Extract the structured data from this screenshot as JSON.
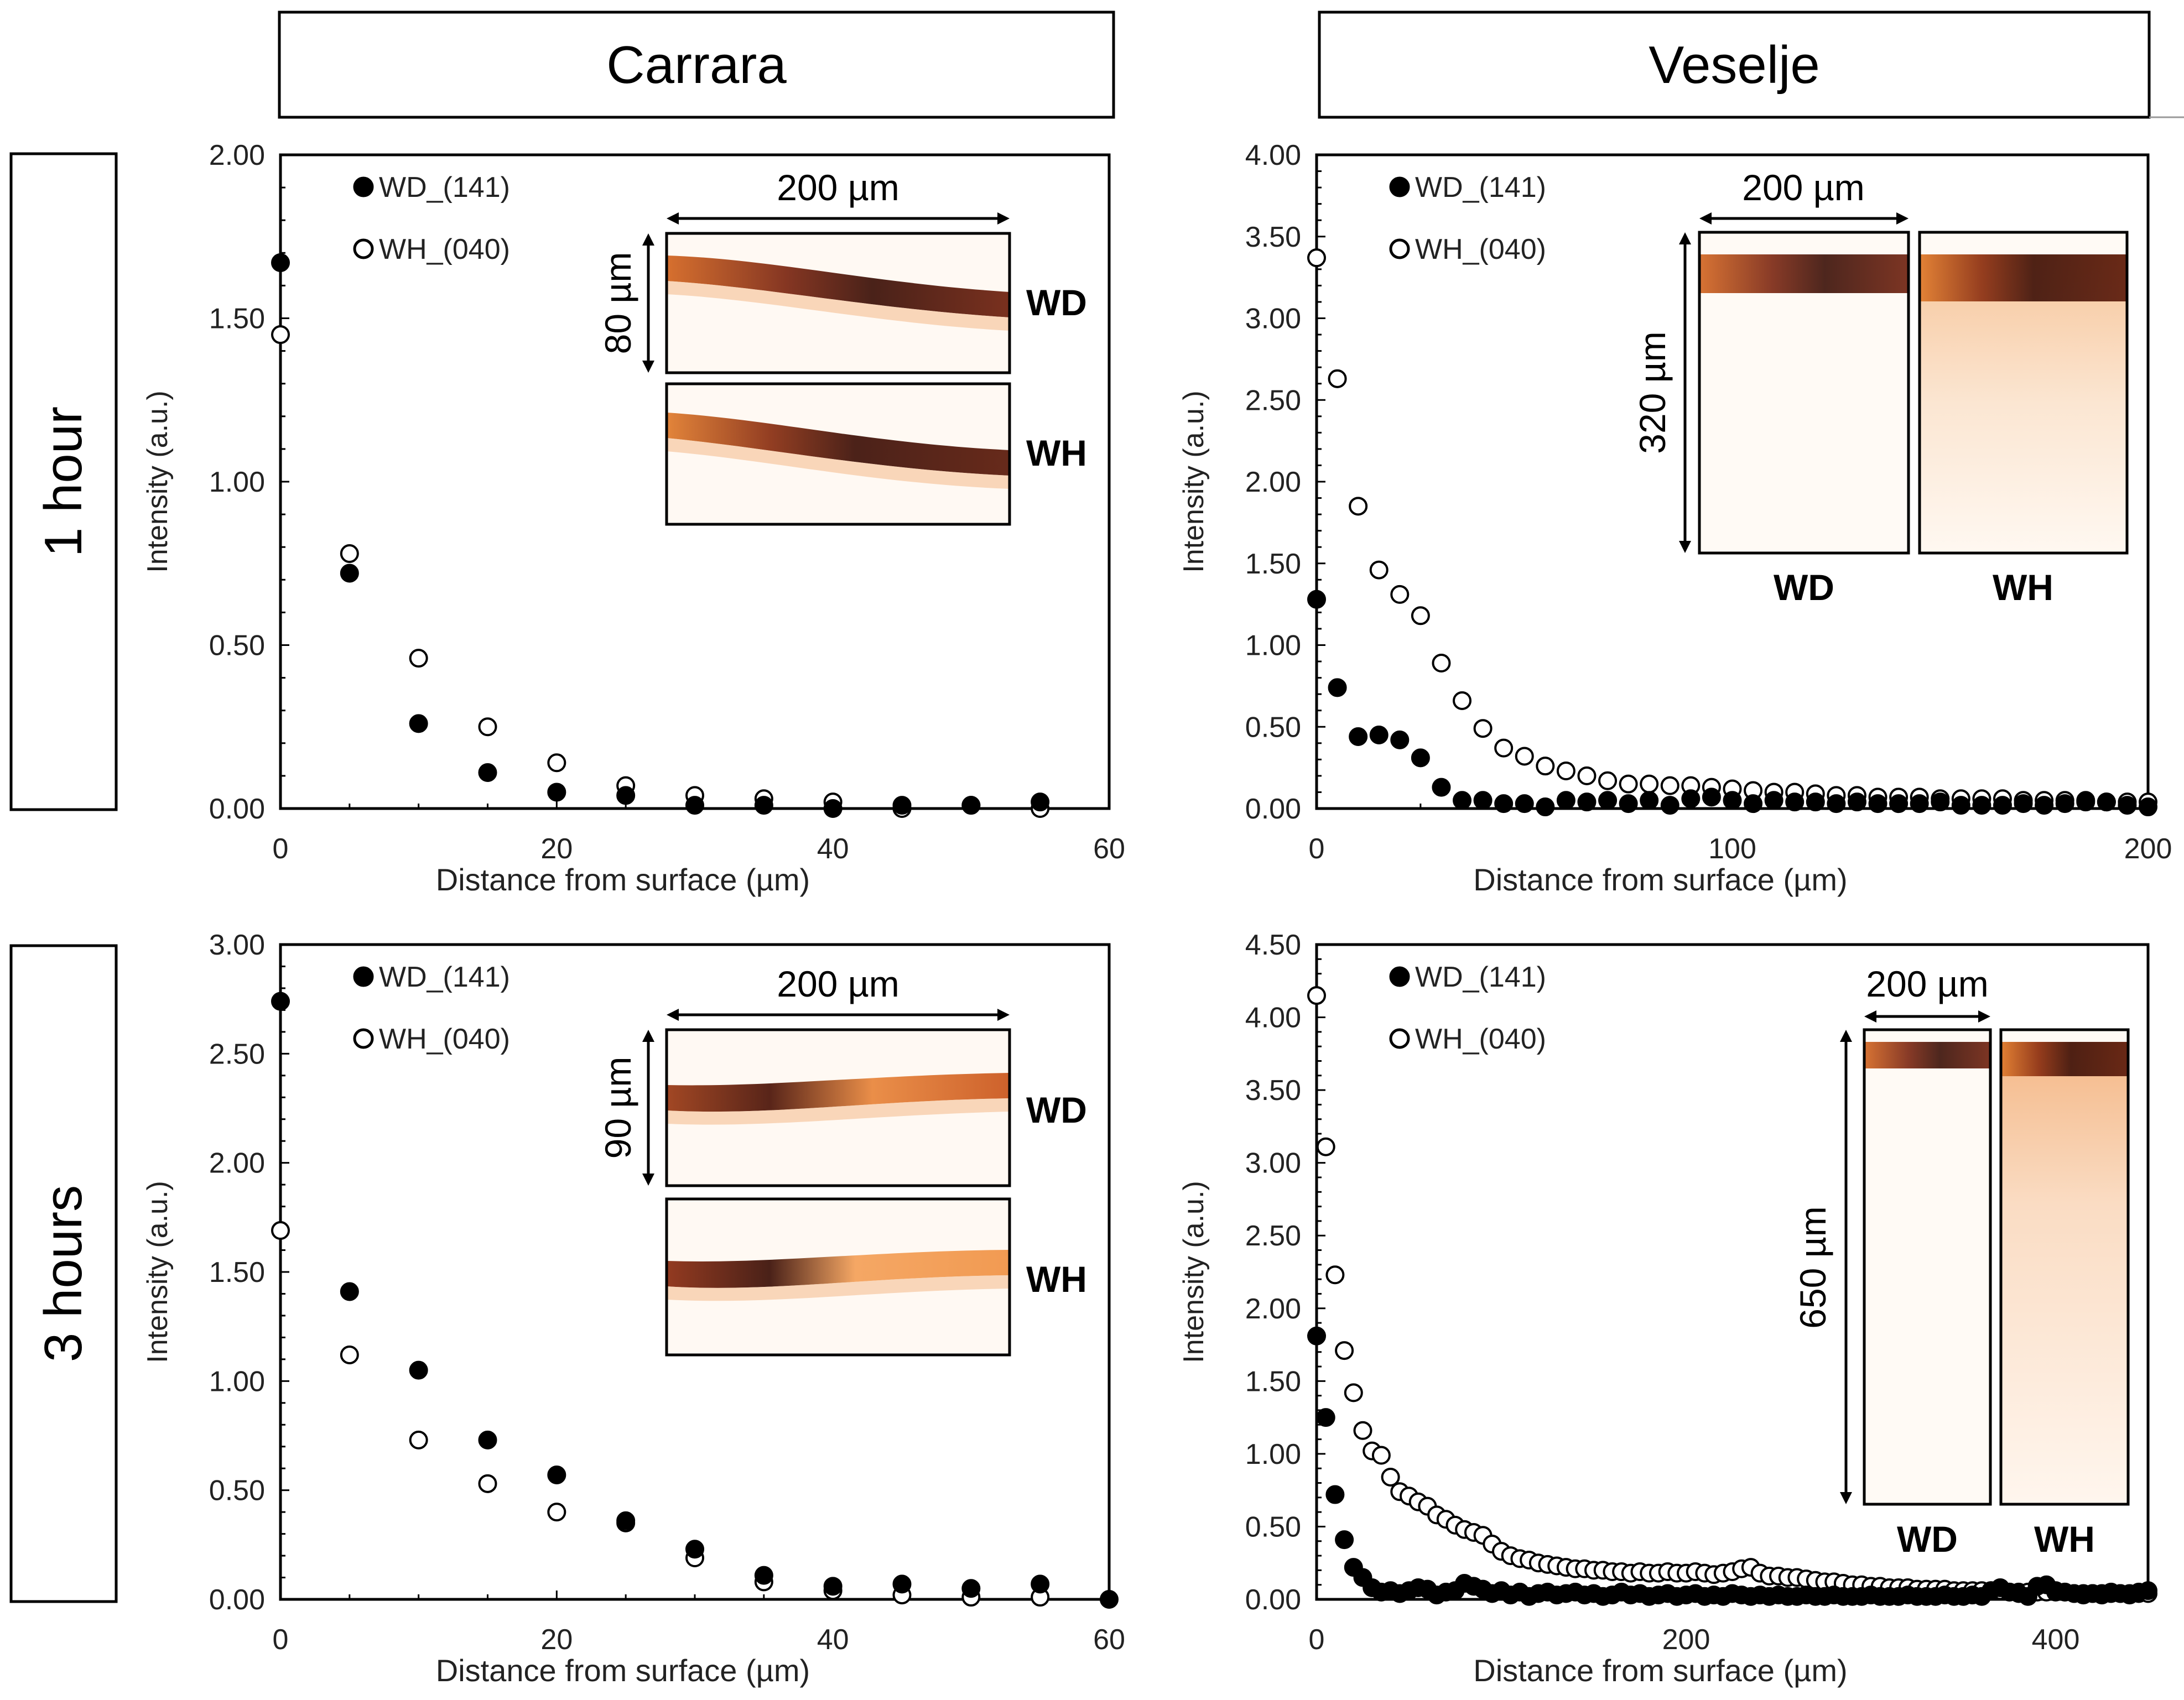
{
  "columns": [
    "Carrara",
    "Veselje"
  ],
  "rows": [
    "1 hour",
    "3 hours"
  ],
  "chart_data": [
    {
      "id": "carrara-1h",
      "type": "scatter",
      "xlabel": "Distance from surface (µm)",
      "ylabel": "Intensity (a.u.)",
      "xlim": [
        0,
        60
      ],
      "ylim": [
        0,
        2.0
      ],
      "xticks": [
        0,
        20,
        40,
        60
      ],
      "yticks": [
        0,
        0.5,
        1.0,
        1.5,
        2.0
      ],
      "xticklabels": [
        "0",
        "20",
        "40",
        "60"
      ],
      "yticklabels": [
        "0.00",
        "0.50",
        "1.00",
        "1.50",
        "2.00"
      ],
      "legend": [
        "WD_(141)",
        "WH_(040)"
      ],
      "series": [
        {
          "name": "WD_(141)",
          "marker": "filled",
          "x": [
            0,
            5,
            10,
            15,
            20,
            25,
            30,
            35,
            40,
            45,
            50,
            55
          ],
          "y": [
            1.67,
            0.72,
            0.26,
            0.11,
            0.05,
            0.04,
            0.01,
            0.01,
            0.0,
            0.01,
            0.01,
            0.02
          ]
        },
        {
          "name": "WH_(040)",
          "marker": "open",
          "x": [
            0,
            5,
            10,
            15,
            20,
            25,
            30,
            35,
            40,
            45,
            50,
            55
          ],
          "y": [
            1.45,
            0.78,
            0.46,
            0.25,
            0.14,
            0.07,
            0.04,
            0.03,
            0.02,
            0.0,
            0.01,
            0.0
          ]
        }
      ],
      "inset": {
        "scale_h": "200 µm",
        "scale_v": "80 µm",
        "labels": [
          "WD",
          "WH"
        ]
      }
    },
    {
      "id": "veselje-1h",
      "type": "scatter",
      "xlabel": "Distance from surface (µm)",
      "ylabel": "Intensity (a.u.)",
      "xlim": [
        0,
        200
      ],
      "ylim": [
        0,
        4.0
      ],
      "xticks": [
        0,
        100,
        200
      ],
      "yticks": [
        0,
        0.5,
        1.0,
        1.5,
        2.0,
        2.5,
        3.0,
        3.5,
        4.0
      ],
      "xticklabels": [
        "0",
        "100",
        "200"
      ],
      "yticklabels": [
        "0.00",
        "0.50",
        "1.00",
        "1.50",
        "2.00",
        "2.50",
        "3.00",
        "3.50",
        "4.00"
      ],
      "legend": [
        "WD_(141)",
        "WH_(040)"
      ],
      "series": [
        {
          "name": "WD_(141)",
          "marker": "filled",
          "x": [
            0,
            5,
            10,
            15,
            20,
            25,
            30,
            35,
            40,
            45,
            50,
            55,
            60,
            65,
            70,
            75,
            80,
            85,
            90,
            95,
            100,
            105,
            110,
            115,
            120,
            125,
            130,
            135,
            140,
            145,
            150,
            155,
            160,
            165,
            170,
            175,
            180,
            185,
            190,
            195,
            200
          ],
          "y": [
            1.28,
            0.74,
            0.44,
            0.45,
            0.42,
            0.31,
            0.13,
            0.05,
            0.05,
            0.03,
            0.03,
            0.01,
            0.05,
            0.04,
            0.05,
            0.03,
            0.05,
            0.02,
            0.06,
            0.07,
            0.05,
            0.03,
            0.05,
            0.04,
            0.04,
            0.03,
            0.04,
            0.03,
            0.03,
            0.03,
            0.04,
            0.02,
            0.02,
            0.02,
            0.03,
            0.02,
            0.03,
            0.04,
            0.04,
            0.02,
            0.01
          ]
        },
        {
          "name": "WH_(040)",
          "marker": "open",
          "x": [
            0,
            5,
            10,
            15,
            20,
            25,
            30,
            35,
            40,
            45,
            50,
            55,
            60,
            65,
            70,
            75,
            80,
            85,
            90,
            95,
            100,
            105,
            110,
            115,
            120,
            125,
            130,
            135,
            140,
            145,
            150,
            155,
            160,
            165,
            170,
            175,
            180,
            185,
            190,
            195,
            200
          ],
          "y": [
            3.37,
            2.63,
            1.85,
            1.46,
            1.31,
            1.18,
            0.89,
            0.66,
            0.49,
            0.37,
            0.32,
            0.26,
            0.23,
            0.2,
            0.17,
            0.15,
            0.15,
            0.14,
            0.14,
            0.13,
            0.12,
            0.11,
            0.1,
            0.1,
            0.09,
            0.08,
            0.08,
            0.07,
            0.07,
            0.07,
            0.06,
            0.06,
            0.06,
            0.06,
            0.05,
            0.05,
            0.05,
            0.05,
            0.04,
            0.04,
            0.04
          ]
        }
      ],
      "inset": {
        "scale_h": "200 µm",
        "scale_v": "320 µm",
        "labels": [
          "WD",
          "WH"
        ]
      }
    },
    {
      "id": "carrara-3h",
      "type": "scatter",
      "xlabel": "Distance from surface (µm)",
      "ylabel": "Intensity (a.u.)",
      "xlim": [
        0,
        60
      ],
      "ylim": [
        0,
        3.0
      ],
      "xticks": [
        0,
        20,
        40,
        60
      ],
      "yticks": [
        0,
        0.5,
        1.0,
        1.5,
        2.0,
        2.5,
        3.0
      ],
      "xticklabels": [
        "0",
        "20",
        "40",
        "60"
      ],
      "yticklabels": [
        "0.00",
        "0.50",
        "1.00",
        "1.50",
        "2.00",
        "2.50",
        "3.00"
      ],
      "legend": [
        "WD_(141)",
        "WH_(040)"
      ],
      "series": [
        {
          "name": "WD_(141)",
          "marker": "filled",
          "x": [
            0,
            5,
            10,
            15,
            20,
            25,
            30,
            35,
            40,
            45,
            50,
            55,
            60
          ],
          "y": [
            2.74,
            1.41,
            1.05,
            0.73,
            0.57,
            0.36,
            0.23,
            0.11,
            0.06,
            0.07,
            0.05,
            0.07,
            0.0
          ]
        },
        {
          "name": "WH_(040)",
          "marker": "open",
          "x": [
            0,
            5,
            10,
            15,
            20,
            25,
            30,
            35,
            40,
            45,
            50,
            55
          ],
          "y": [
            1.69,
            1.12,
            0.73,
            0.53,
            0.4,
            0.35,
            0.19,
            0.08,
            0.04,
            0.02,
            0.01,
            0.01
          ]
        }
      ],
      "inset": {
        "scale_h": "200 µm",
        "scale_v": "90 µm",
        "labels": [
          "WD",
          "WH"
        ]
      }
    },
    {
      "id": "veselje-3h",
      "type": "scatter",
      "xlabel": "Distance from surface (µm)",
      "ylabel": "Intensity (a.u.)",
      "xlim": [
        0,
        450
      ],
      "ylim": [
        0,
        4.5
      ],
      "xticks": [
        0,
        200,
        400
      ],
      "yticks": [
        0,
        0.5,
        1.0,
        1.5,
        2.0,
        2.5,
        3.0,
        3.5,
        4.0,
        4.5
      ],
      "xticklabels": [
        "0",
        "200",
        "400"
      ],
      "yticklabels": [
        "0.00",
        "0.50",
        "1.00",
        "1.50",
        "2.00",
        "2.50",
        "3.00",
        "3.50",
        "4.00",
        "4.50"
      ],
      "legend": [
        "WD_(141)",
        "WH_(040)"
      ],
      "series": [
        {
          "name": "WD_(141)",
          "marker": "filled",
          "x": [
            0,
            5,
            10,
            15,
            20,
            25,
            30,
            35,
            40,
            45,
            50,
            55,
            60,
            65,
            70,
            75,
            80,
            85,
            90,
            95,
            100,
            105,
            110,
            115,
            120,
            125,
            130,
            135,
            140,
            145,
            150,
            155,
            160,
            165,
            170,
            175,
            180,
            185,
            190,
            195,
            200,
            205,
            210,
            215,
            220,
            225,
            230,
            235,
            240,
            245,
            250,
            255,
            260,
            265,
            270,
            275,
            280,
            285,
            290,
            295,
            300,
            305,
            310,
            315,
            320,
            325,
            330,
            335,
            340,
            345,
            350,
            355,
            360,
            365,
            370,
            375,
            380,
            385,
            390,
            395,
            400,
            405,
            410,
            415,
            420,
            425,
            430,
            435,
            440,
            445,
            450
          ],
          "y": [
            1.81,
            1.25,
            0.72,
            0.41,
            0.22,
            0.15,
            0.08,
            0.05,
            0.06,
            0.04,
            0.06,
            0.08,
            0.07,
            0.03,
            0.05,
            0.06,
            0.11,
            0.09,
            0.07,
            0.04,
            0.06,
            0.03,
            0.05,
            0.02,
            0.04,
            0.05,
            0.03,
            0.04,
            0.05,
            0.03,
            0.04,
            0.02,
            0.03,
            0.05,
            0.03,
            0.04,
            0.02,
            0.03,
            0.04,
            0.02,
            0.03,
            0.04,
            0.02,
            0.03,
            0.02,
            0.04,
            0.03,
            0.02,
            0.03,
            0.02,
            0.03,
            0.02,
            0.02,
            0.03,
            0.02,
            0.02,
            0.03,
            0.02,
            0.02,
            0.02,
            0.03,
            0.02,
            0.02,
            0.02,
            0.03,
            0.02,
            0.02,
            0.02,
            0.03,
            0.02,
            0.02,
            0.03,
            0.02,
            0.06,
            0.08,
            0.05,
            0.04,
            0.02,
            0.09,
            0.1,
            0.06,
            0.05,
            0.04,
            0.03,
            0.04,
            0.03,
            0.05,
            0.04,
            0.03,
            0.05,
            0.06
          ]
        },
        {
          "name": "WH_(040)",
          "marker": "open",
          "x": [
            0,
            5,
            10,
            15,
            20,
            25,
            30,
            35,
            40,
            45,
            50,
            55,
            60,
            65,
            70,
            75,
            80,
            85,
            90,
            95,
            100,
            105,
            110,
            115,
            120,
            125,
            130,
            135,
            140,
            145,
            150,
            155,
            160,
            165,
            170,
            175,
            180,
            185,
            190,
            195,
            200,
            205,
            210,
            215,
            220,
            225,
            230,
            235,
            240,
            245,
            250,
            255,
            260,
            265,
            270,
            275,
            280,
            285,
            290,
            295,
            300,
            305,
            310,
            315,
            320,
            325,
            330,
            335,
            340,
            345,
            350,
            355,
            360,
            365,
            370,
            375,
            380,
            385,
            390,
            395,
            400,
            405,
            410,
            415,
            420,
            425,
            430,
            435,
            440,
            445,
            450
          ],
          "y": [
            4.15,
            3.11,
            2.23,
            1.71,
            1.42,
            1.16,
            1.02,
            0.99,
            0.84,
            0.74,
            0.71,
            0.67,
            0.64,
            0.58,
            0.55,
            0.51,
            0.48,
            0.46,
            0.44,
            0.38,
            0.33,
            0.3,
            0.28,
            0.27,
            0.25,
            0.24,
            0.23,
            0.22,
            0.21,
            0.21,
            0.2,
            0.2,
            0.19,
            0.19,
            0.18,
            0.19,
            0.18,
            0.18,
            0.19,
            0.18,
            0.18,
            0.19,
            0.18,
            0.17,
            0.18,
            0.19,
            0.21,
            0.22,
            0.18,
            0.16,
            0.16,
            0.15,
            0.15,
            0.14,
            0.13,
            0.12,
            0.12,
            0.11,
            0.1,
            0.1,
            0.09,
            0.09,
            0.08,
            0.08,
            0.08,
            0.07,
            0.07,
            0.07,
            0.07,
            0.06,
            0.06,
            0.06,
            0.06,
            0.06,
            0.06,
            0.05,
            0.05,
            0.05,
            0.05,
            0.05,
            0.05,
            0.05,
            0.04,
            0.04,
            0.04,
            0.04,
            0.04,
            0.04,
            0.04,
            0.04,
            0.04
          ]
        }
      ],
      "inset": {
        "scale_h": "200 µm",
        "scale_v": "650 µm",
        "labels": [
          "WD",
          "WH"
        ]
      }
    }
  ]
}
